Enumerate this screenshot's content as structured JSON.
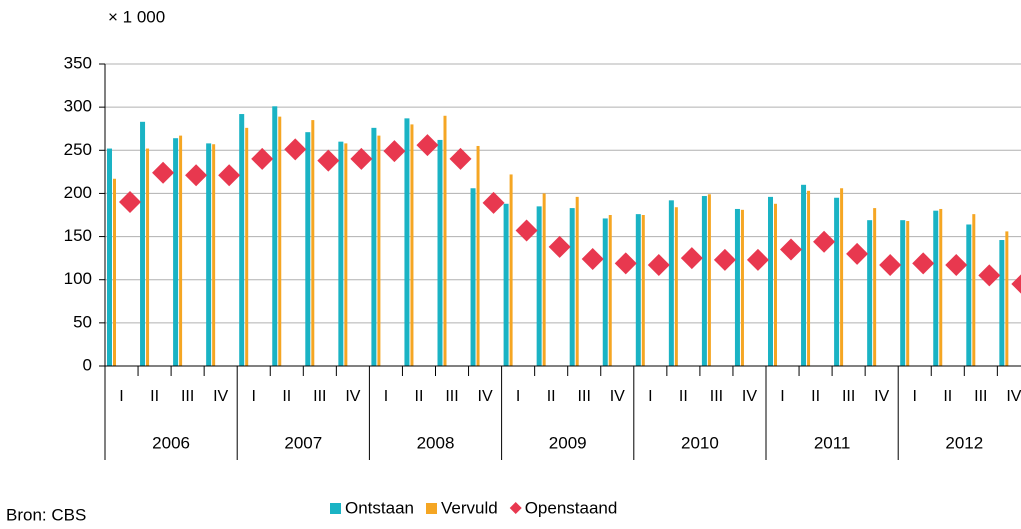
{
  "chart_data": {
    "type": "bar_marker",
    "unit_label": "× 1 000",
    "source": "Bron: CBS",
    "categories": [
      "I",
      "II",
      "III",
      "IV",
      "I",
      "II",
      "III",
      "IV",
      "I",
      "II",
      "III",
      "IV",
      "I",
      "II",
      "III",
      "IV",
      "I",
      "II",
      "III",
      "IV",
      "I",
      "II",
      "III",
      "IV",
      "I",
      "II",
      "III",
      "IV"
    ],
    "years": [
      "2006",
      "2007",
      "2008",
      "2009",
      "2010",
      "2011",
      "2012"
    ],
    "series": [
      {
        "name": "Ontstaan",
        "color": "#1ab3c4",
        "kind": "bar",
        "values": [
          252,
          283,
          264,
          258,
          292,
          301,
          271,
          260,
          276,
          287,
          262,
          206,
          188,
          185,
          183,
          171,
          176,
          192,
          197,
          182,
          196,
          210,
          195,
          169,
          169,
          180,
          164,
          146
        ]
      },
      {
        "name": "Vervuld",
        "color": "#f5a623",
        "kind": "bar",
        "values": [
          217,
          252,
          267,
          257,
          276,
          289,
          285,
          258,
          267,
          280,
          290,
          255,
          222,
          200,
          196,
          175,
          175,
          184,
          199,
          181,
          188,
          203,
          206,
          183,
          168,
          182,
          176,
          156
        ]
      },
      {
        "name": "Openstaand",
        "color": "#e8384f",
        "kind": "marker",
        "values": [
          190,
          224,
          221,
          221,
          240,
          251,
          238,
          240,
          249,
          256,
          240,
          189,
          157,
          138,
          124,
          119,
          117,
          125,
          123,
          123,
          135,
          144,
          130,
          117,
          119,
          117,
          105,
          95
        ]
      }
    ],
    "ylim": [
      0,
      350
    ],
    "yticks": [
      0,
      50,
      100,
      150,
      200,
      250,
      300,
      350
    ],
    "grid": true,
    "legend": "bottom"
  }
}
